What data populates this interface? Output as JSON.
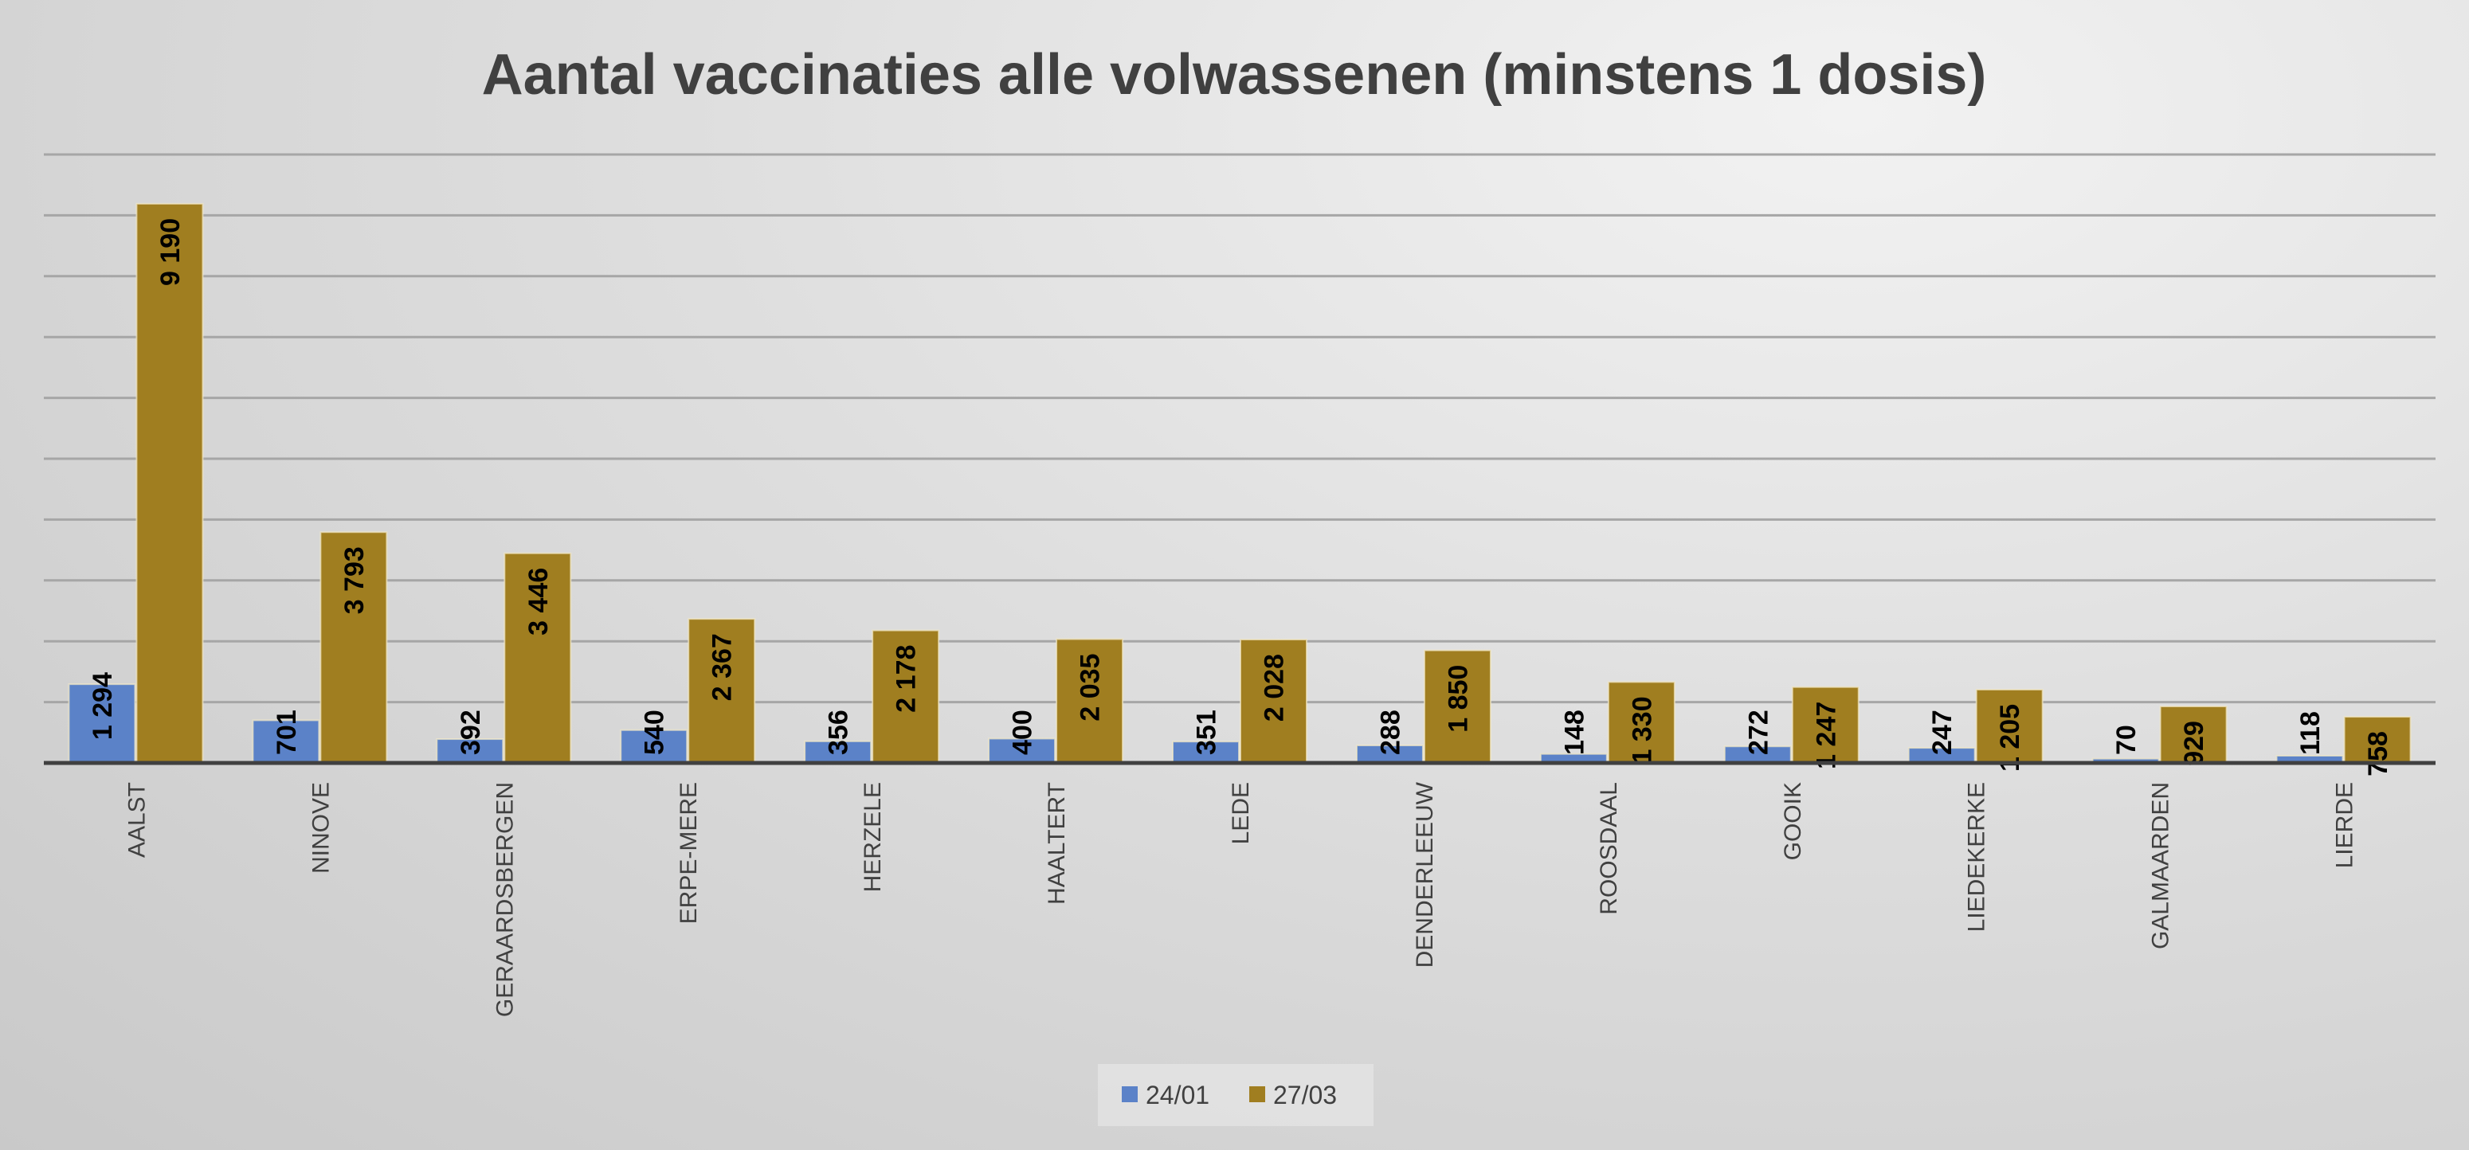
{
  "chart_data": {
    "type": "bar",
    "title": "Aantal vaccinaties alle volwassenen (minstens 1 dosis)",
    "xlabel": "",
    "ylabel": "",
    "ylim": [
      0,
      10000
    ],
    "grid": true,
    "grid_step": 1000,
    "legend_position": "bottom",
    "categories": [
      "AALST",
      "NINOVE",
      "GERAARDSBERGEN",
      "ERPE-MERE",
      "HERZELE",
      "HAALTERT",
      "LEDE",
      "DENDERLEEUW",
      "ROOSDAAL",
      "GOOIK",
      "LIEDEKERKE",
      "GALMAARDEN",
      "LIERDE"
    ],
    "series": [
      {
        "name": "24/01",
        "color": "#5b82c8",
        "values": [
          1294,
          701,
          392,
          540,
          356,
          400,
          351,
          288,
          148,
          272,
          247,
          70,
          118
        ]
      },
      {
        "name": "27/03",
        "color": "#a07e20",
        "values": [
          9190,
          3793,
          3446,
          2367,
          2178,
          2035,
          2028,
          1850,
          1330,
          1247,
          1205,
          929,
          758
        ]
      }
    ]
  }
}
